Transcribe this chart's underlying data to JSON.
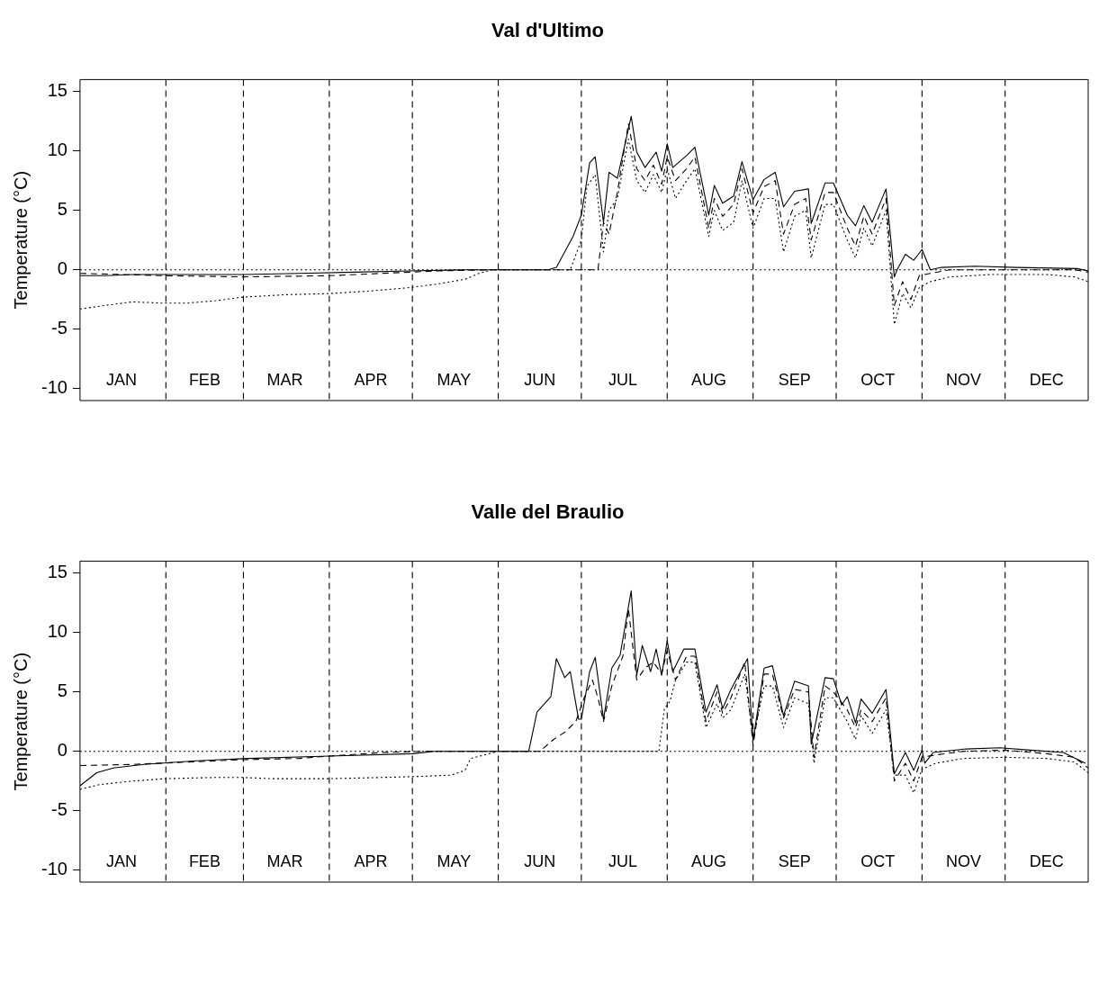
{
  "chart_data": [
    {
      "type": "line",
      "title": "Val d'Ultimo",
      "ylabel": "Temperature (°C)",
      "xlim": [
        "--01-01",
        "--12-31"
      ],
      "ylim": [
        -11,
        16
      ],
      "yticks": [
        -10,
        -5,
        0,
        5,
        10,
        15
      ],
      "series": [
        {
          "color": "#000000",
          "line_style": "solid",
          "x": [
            "--01-01",
            "--01-10",
            "--01-20",
            "--02-09",
            "--03-01",
            "--03-21",
            "--04-10",
            "--04-30",
            "--05-20",
            "--06-19",
            "--06-22",
            "--06-28",
            "--07-01",
            "--07-04",
            "--07-06",
            "--07-09",
            "--07-11",
            "--07-14",
            "--07-19",
            "--07-21",
            "--07-24",
            "--07-28",
            "--07-30",
            "--08-01",
            "--08-03",
            "--08-08",
            "--08-11",
            "--08-16",
            "--08-18",
            "--08-21",
            "--08-25",
            "--08-28",
            "--09-01",
            "--09-05",
            "--09-09",
            "--09-12",
            "--09-16",
            "--09-21",
            "--09-22",
            "--09-27",
            "--09-30",
            "--10-05",
            "--10-08",
            "--10-11",
            "--10-14",
            "--10-19",
            "--10-22",
            "--10-23",
            "--10-26",
            "--10-29",
            "--11-01",
            "--11-04",
            "--11-08",
            "--11-20",
            "--12-05",
            "--12-27",
            "--12-31"
          ],
          "values": [
            -0.5,
            -0.5,
            -0.4,
            -0.4,
            -0.4,
            -0.3,
            -0.2,
            -0.1,
            0,
            0,
            0.2,
            2.8,
            4.6,
            9,
            9.5,
            4,
            8.2,
            7.7,
            12.9,
            9.9,
            8.6,
            9.9,
            8.3,
            10.6,
            8.6,
            9.6,
            10.3,
            4.6,
            7.1,
            5.6,
            6.2,
            9.1,
            5.9,
            7.6,
            8.2,
            5.3,
            6.6,
            6.8,
            3.9,
            7.3,
            7.3,
            4.6,
            3.7,
            5.4,
            4,
            6.8,
            -0.6,
            0,
            1.3,
            0.8,
            1.7,
            0,
            0.2,
            0.3,
            0.2,
            0.1,
            -0.1
          ]
        },
        {
          "color": "#000000",
          "line_style": "dashed",
          "x": [
            "--01-01",
            "--02-01",
            "--03-01",
            "--04-01",
            "--04-20",
            "--05-10",
            "--05-30",
            "--07-07",
            "--07-09",
            "--07-11",
            "--07-14",
            "--07-18",
            "--07-21",
            "--07-24",
            "--07-27",
            "--07-30",
            "--08-01",
            "--08-04",
            "--08-08",
            "--08-11",
            "--08-16",
            "--08-18",
            "--08-21",
            "--08-25",
            "--08-28",
            "--09-01",
            "--09-05",
            "--09-09",
            "--09-12",
            "--09-16",
            "--09-20",
            "--09-22",
            "--09-27",
            "--09-30",
            "--10-05",
            "--10-08",
            "--10-11",
            "--10-14",
            "--10-19",
            "--10-22",
            "--10-25",
            "--10-28",
            "--10-31",
            "--11-04",
            "--11-11",
            "--12-06",
            "--12-26",
            "--12-31"
          ],
          "values": [
            -0.3,
            -0.5,
            -0.6,
            -0.5,
            -0.3,
            -0.1,
            0,
            0,
            4,
            3,
            6.5,
            12.3,
            8.5,
            7.5,
            8.8,
            7.2,
            9.5,
            7.5,
            8.5,
            9.5,
            3.5,
            6,
            4.5,
            5.5,
            8.5,
            4.8,
            7,
            7.5,
            3,
            5.5,
            6,
            2.5,
            6.5,
            6.5,
            3.5,
            2,
            4.5,
            3,
            6,
            -3,
            -1,
            -2.5,
            -0.5,
            -0.3,
            0,
            0,
            0,
            -0.2
          ]
        },
        {
          "color": "#000000",
          "line_style": "dotted",
          "x": [
            "--01-01",
            "--01-10",
            "--01-20",
            "--01-30",
            "--02-09",
            "--02-19",
            "--03-01",
            "--03-16",
            "--04-01",
            "--04-15",
            "--04-30",
            "--05-10",
            "--05-20",
            "--05-25",
            "--05-30",
            "--06-27",
            "--07-01",
            "--07-03",
            "--07-06",
            "--07-09",
            "--07-11",
            "--07-14",
            "--07-18",
            "--07-21",
            "--07-24",
            "--07-27",
            "--07-30",
            "--08-01",
            "--08-04",
            "--08-08",
            "--08-11",
            "--08-16",
            "--08-18",
            "--08-21",
            "--08-25",
            "--08-28",
            "--09-01",
            "--09-05",
            "--09-09",
            "--09-12",
            "--09-16",
            "--09-20",
            "--09-22",
            "--09-27",
            "--09-30",
            "--10-05",
            "--10-08",
            "--10-11",
            "--10-14",
            "--10-19",
            "--10-22",
            "--10-25",
            "--10-28",
            "--10-31",
            "--11-04",
            "--11-11",
            "--11-26",
            "--12-16",
            "--12-26",
            "--12-31"
          ],
          "values": [
            -3.3,
            -3,
            -2.7,
            -2.8,
            -2.8,
            -2.6,
            -2.3,
            -2.1,
            -2,
            -1.8,
            -1.5,
            -1.2,
            -0.8,
            -0.3,
            0,
            0,
            2.5,
            7,
            8,
            1.5,
            5,
            6,
            11,
            7.5,
            6.5,
            8,
            6.5,
            8.5,
            6,
            7.5,
            8.5,
            2.8,
            5,
            3.3,
            4,
            7.5,
            3.5,
            6,
            6,
            1.5,
            4.5,
            5,
            1,
            5.5,
            5.5,
            2.5,
            1,
            3.5,
            2,
            5,
            -4.6,
            -2,
            -3.2,
            -1.5,
            -1,
            -0.6,
            -0.4,
            -0.4,
            -0.6,
            -1
          ]
        }
      ],
      "ref_lines": [
        {
          "axis": "y",
          "value": 0,
          "line_style": "dotted"
        },
        {
          "axis": "x",
          "value": "--02-01",
          "line_style": "dashed"
        },
        {
          "axis": "x",
          "value": "--03-01",
          "line_style": "dashed"
        },
        {
          "axis": "x",
          "value": "--04-01",
          "line_style": "dashed"
        },
        {
          "axis": "x",
          "value": "--05-01",
          "line_style": "dashed"
        },
        {
          "axis": "x",
          "value": "--06-01",
          "line_style": "dashed"
        },
        {
          "axis": "x",
          "value": "--07-01",
          "line_style": "dashed"
        },
        {
          "axis": "x",
          "value": "--08-01",
          "line_style": "dashed"
        },
        {
          "axis": "x",
          "value": "--09-01",
          "line_style": "dashed"
        },
        {
          "axis": "x",
          "value": "--10-01",
          "line_style": "dashed"
        },
        {
          "axis": "x",
          "value": "--11-01",
          "line_style": "dashed"
        },
        {
          "axis": "x",
          "value": "--12-01",
          "line_style": "dashed"
        }
      ],
      "xticks": [
        {
          "value": "--01-16",
          "label": "JAN"
        },
        {
          "value": "--02-15",
          "label": "FEB"
        },
        {
          "value": "--03-16",
          "label": "MAR"
        },
        {
          "value": "--04-16",
          "label": "APR"
        },
        {
          "value": "--05-16",
          "label": "MAY"
        },
        {
          "value": "--06-16",
          "label": "JUN"
        },
        {
          "value": "--07-16",
          "label": "JUL"
        },
        {
          "value": "--08-16",
          "label": "AUG"
        },
        {
          "value": "--09-16",
          "label": "SEP"
        },
        {
          "value": "--10-16",
          "label": "OCT"
        },
        {
          "value": "--11-16",
          "label": "NOV"
        },
        {
          "value": "--12-16",
          "label": "DEC"
        }
      ]
    },
    {
      "type": "line",
      "title": "Valle del Braulio",
      "ylabel": "Temperature (°C)",
      "xlim": [
        "--01-01",
        "--12-31"
      ],
      "ylim": [
        -11,
        16
      ],
      "yticks": [
        -10,
        -5,
        0,
        5,
        10,
        15
      ],
      "series": [
        {
          "color": "#000000",
          "line_style": "solid",
          "x": [
            "--01-01",
            "--01-07",
            "--01-13",
            "--01-24",
            "--02-12",
            "--03-03",
            "--04-01",
            "--05-01",
            "--05-09",
            "--06-12",
            "--06-15",
            "--06-20",
            "--06-22",
            "--06-25",
            "--06-27",
            "--06-30",
            "--07-01",
            "--07-04",
            "--07-06",
            "--07-09",
            "--07-12",
            "--07-15",
            "--07-19",
            "--07-21",
            "--07-23",
            "--07-26",
            "--07-28",
            "--07-30",
            "--08-01",
            "--08-03",
            "--08-07",
            "--08-11",
            "--08-15",
            "--08-19",
            "--08-21",
            "--08-24",
            "--08-30",
            "--09-01",
            "--09-05",
            "--09-08",
            "--09-12",
            "--09-16",
            "--09-21",
            "--09-22",
            "--09-27",
            "--09-30",
            "--10-03",
            "--10-05",
            "--10-08",
            "--10-10",
            "--10-14",
            "--10-19",
            "--10-22",
            "--10-26",
            "--10-29",
            "--11-01",
            "--11-02",
            "--11-05",
            "--11-17",
            "--11-29",
            "--12-10",
            "--12-22",
            "--12-30"
          ],
          "values": [
            -2.9,
            -1.8,
            -1.4,
            -1.1,
            -0.8,
            -0.6,
            -0.4,
            -0.2,
            0,
            0,
            3.3,
            4.6,
            7.8,
            6.2,
            6.7,
            2.7,
            2.7,
            6.7,
            7.9,
            2.7,
            7,
            8.1,
            13.5,
            6.4,
            8.9,
            6.7,
            8.6,
            6.4,
            9.3,
            6.7,
            8.6,
            8.6,
            3.3,
            5.6,
            3.6,
            5.2,
            7.8,
            0.9,
            7,
            7.2,
            3,
            5.9,
            5.5,
            0.6,
            6.2,
            6.1,
            3.9,
            4.6,
            2.4,
            4.4,
            3.2,
            5.2,
            -1.9,
            -0.1,
            -1.6,
            0.1,
            -1,
            -0.1,
            0.2,
            0.3,
            0.1,
            -0.1,
            -1
          ]
        },
        {
          "color": "#000000",
          "line_style": "dashed",
          "x": [
            "--01-01",
            "--01-20",
            "--02-09",
            "--03-01",
            "--03-21",
            "--04-01",
            "--04-20",
            "--05-05",
            "--06-16",
            "--06-21",
            "--06-25",
            "--06-29",
            "--07-02",
            "--07-05",
            "--07-07",
            "--07-09",
            "--07-12",
            "--07-16",
            "--07-18",
            "--07-21",
            "--07-24",
            "--07-27",
            "--07-30",
            "--08-01",
            "--08-04",
            "--08-08",
            "--08-11",
            "--08-15",
            "--08-19",
            "--08-21",
            "--08-24",
            "--08-29",
            "--09-01",
            "--09-05",
            "--09-08",
            "--09-12",
            "--09-16",
            "--09-21",
            "--09-23",
            "--09-27",
            "--09-30",
            "--10-05",
            "--10-08",
            "--10-10",
            "--10-14",
            "--10-19",
            "--10-22",
            "--10-26",
            "--10-29",
            "--11-01",
            "--11-06",
            "--11-16",
            "--12-01",
            "--12-16",
            "--12-26",
            "--12-31"
          ],
          "values": [
            -1.2,
            -1.1,
            -0.9,
            -0.7,
            -0.6,
            -0.4,
            -0.1,
            0,
            0,
            1,
            1.6,
            2.5,
            4.5,
            6,
            4.5,
            2.5,
            5.5,
            8,
            12,
            6,
            7,
            7.5,
            6.5,
            8.5,
            6,
            8,
            8,
            2.5,
            5,
            3.2,
            4.5,
            7.5,
            0.5,
            6.5,
            6.5,
            2.8,
            5.2,
            5,
            -0.5,
            5.5,
            5,
            3.5,
            2,
            3.5,
            2.5,
            4.5,
            -2.5,
            -1,
            -2.5,
            -0.5,
            -0.3,
            0,
            0.1,
            -0.2,
            -0.5,
            -1.4
          ]
        },
        {
          "color": "#000000",
          "line_style": "dotted",
          "x": [
            "--01-01",
            "--01-08",
            "--01-20",
            "--02-01",
            "--02-19",
            "--03-01",
            "--03-11",
            "--04-01",
            "--04-20",
            "--05-05",
            "--05-15",
            "--05-20",
            "--05-22",
            "--05-27",
            "--06-01",
            "--07-29",
            "--07-31",
            "--08-02",
            "--08-04",
            "--08-08",
            "--08-11",
            "--08-15",
            "--08-19",
            "--08-21",
            "--08-24",
            "--08-29",
            "--09-01",
            "--09-05",
            "--09-08",
            "--09-12",
            "--09-16",
            "--09-21",
            "--09-23",
            "--09-27",
            "--09-30",
            "--10-05",
            "--10-08",
            "--10-10",
            "--10-14",
            "--10-19",
            "--10-22",
            "--10-26",
            "--10-29",
            "--11-01",
            "--11-06",
            "--11-16",
            "--12-01",
            "--12-16",
            "--12-26",
            "--12-31"
          ],
          "values": [
            -3.2,
            -2.8,
            -2.5,
            -2.3,
            -2.2,
            -2.2,
            -2.3,
            -2.3,
            -2.2,
            -2.1,
            -2,
            -1.6,
            -0.6,
            -0.3,
            0,
            0,
            3.6,
            4.2,
            6,
            7.5,
            7.5,
            2,
            4,
            2.8,
            3.5,
            6.5,
            1,
            5.5,
            5.5,
            2,
            4.5,
            4,
            -1,
            4.5,
            4.5,
            2.5,
            1,
            3,
            1.5,
            3.5,
            -2,
            -2,
            -3.5,
            -1.5,
            -1,
            -0.6,
            -0.5,
            -0.6,
            -0.9,
            -1.8
          ]
        }
      ],
      "ref_lines": [
        {
          "axis": "y",
          "value": 0,
          "line_style": "dotted"
        },
        {
          "axis": "x",
          "value": "--02-01",
          "line_style": "dashed"
        },
        {
          "axis": "x",
          "value": "--03-01",
          "line_style": "dashed"
        },
        {
          "axis": "x",
          "value": "--04-01",
          "line_style": "dashed"
        },
        {
          "axis": "x",
          "value": "--05-01",
          "line_style": "dashed"
        },
        {
          "axis": "x",
          "value": "--06-01",
          "line_style": "dashed"
        },
        {
          "axis": "x",
          "value": "--07-01",
          "line_style": "dashed"
        },
        {
          "axis": "x",
          "value": "--08-01",
          "line_style": "dashed"
        },
        {
          "axis": "x",
          "value": "--09-01",
          "line_style": "dashed"
        },
        {
          "axis": "x",
          "value": "--10-01",
          "line_style": "dashed"
        },
        {
          "axis": "x",
          "value": "--11-01",
          "line_style": "dashed"
        },
        {
          "axis": "x",
          "value": "--12-01",
          "line_style": "dashed"
        }
      ],
      "xticks": [
        {
          "value": "--01-16",
          "label": "JAN"
        },
        {
          "value": "--02-15",
          "label": "FEB"
        },
        {
          "value": "--03-16",
          "label": "MAR"
        },
        {
          "value": "--04-16",
          "label": "APR"
        },
        {
          "value": "--05-16",
          "label": "MAY"
        },
        {
          "value": "--06-16",
          "label": "JUN"
        },
        {
          "value": "--07-16",
          "label": "JUL"
        },
        {
          "value": "--08-16",
          "label": "AUG"
        },
        {
          "value": "--09-16",
          "label": "SEP"
        },
        {
          "value": "--10-16",
          "label": "OCT"
        },
        {
          "value": "--11-16",
          "label": "NOV"
        },
        {
          "value": "--12-16",
          "label": "DEC"
        }
      ]
    }
  ]
}
